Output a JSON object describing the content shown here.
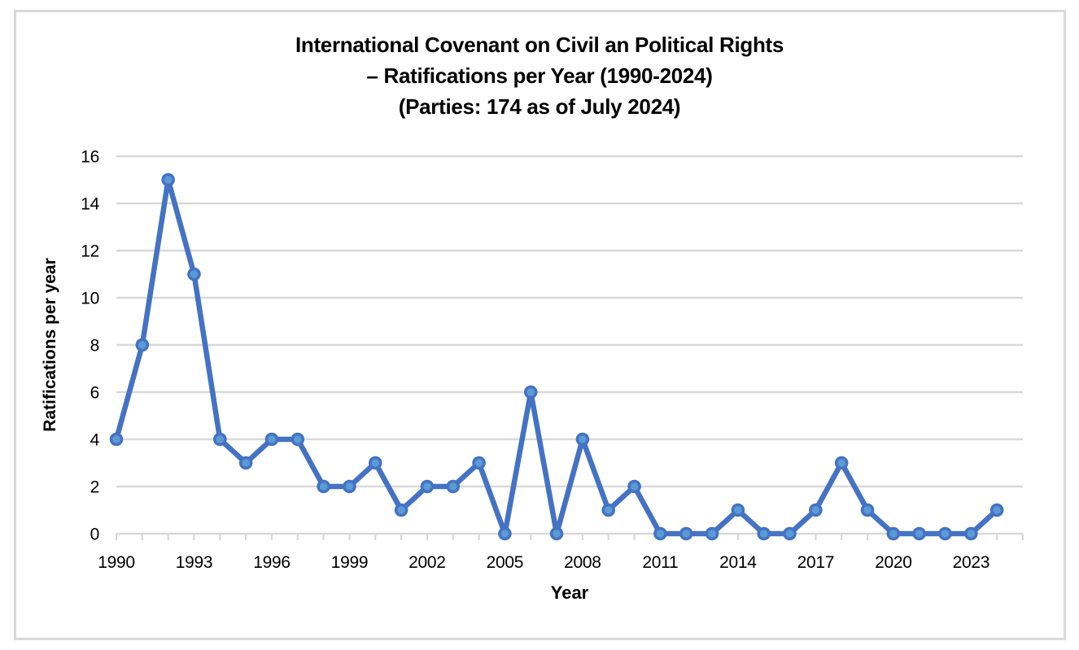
{
  "title": {
    "line1": "International Covenant on Civil an Political Rights",
    "line2": "– Ratifications per Year (1990-2024)",
    "line3": "(Parties: 174 as of July 2024)"
  },
  "chart_data": {
    "type": "line",
    "title": "International Covenant on Civil an Political Rights – Ratifications per Year (1990-2024) (Parties: 174 as of July 2024)",
    "xlabel": "Year",
    "ylabel": "Ratifications per year",
    "x": [
      1990,
      1991,
      1992,
      1993,
      1994,
      1995,
      1996,
      1997,
      1998,
      1999,
      2000,
      2001,
      2002,
      2003,
      2004,
      2005,
      2006,
      2007,
      2008,
      2009,
      2010,
      2011,
      2012,
      2013,
      2014,
      2015,
      2016,
      2017,
      2018,
      2019,
      2020,
      2021,
      2022,
      2023,
      2024
    ],
    "values": [
      4,
      8,
      15,
      11,
      4,
      3,
      4,
      4,
      2,
      2,
      3,
      1,
      2,
      2,
      3,
      0,
      6,
      0,
      4,
      1,
      2,
      0,
      0,
      0,
      1,
      0,
      0,
      1,
      3,
      1,
      0,
      0,
      0,
      0,
      1
    ],
    "xlim": [
      1990,
      2025
    ],
    "ylim": [
      0,
      16
    ],
    "y_tick_step": 2,
    "x_tick_labels": [
      1990,
      1993,
      1996,
      1999,
      2002,
      2005,
      2008,
      2011,
      2014,
      2017,
      2020,
      2023
    ],
    "grid": "horizontal",
    "legend_position": "none",
    "colors": {
      "line": "#4472C4",
      "marker_fill": "#5B9BD5",
      "grid": "#D9D9D9",
      "text": "#000000",
      "border": "#D9D9D9"
    }
  }
}
